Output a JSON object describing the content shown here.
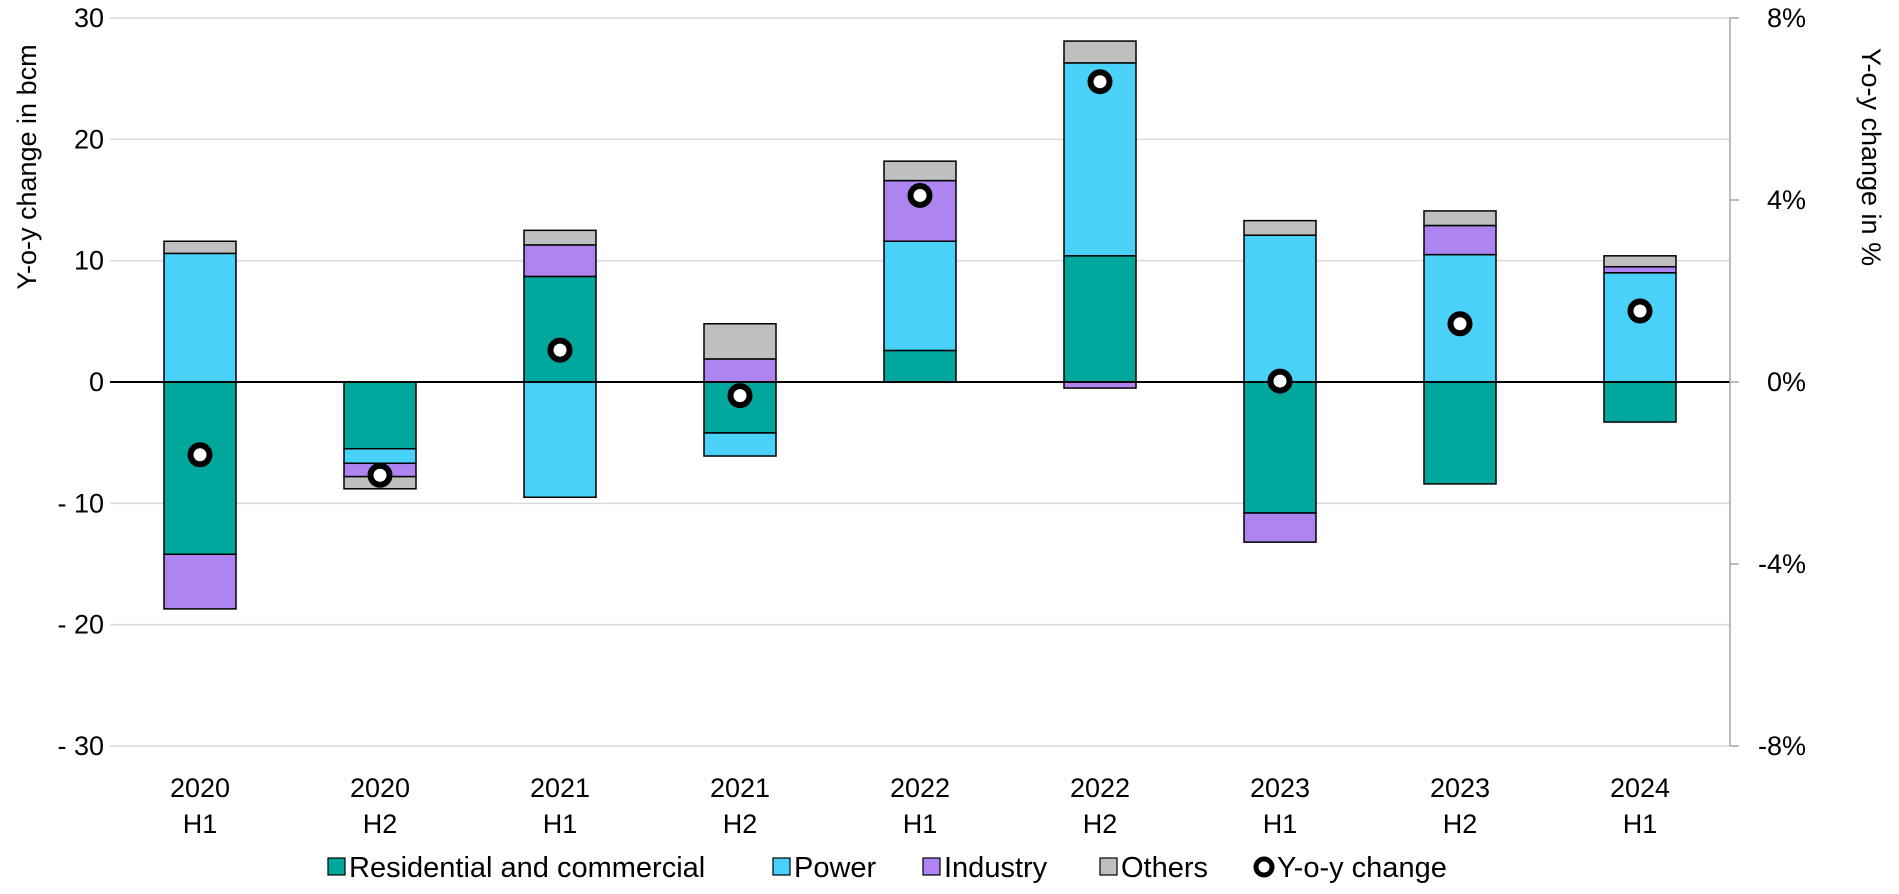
{
  "chart_data": {
    "type": "bar",
    "stacked": true,
    "categories": [
      [
        "2020",
        "H1"
      ],
      [
        "2020",
        "H2"
      ],
      [
        "2021",
        "H1"
      ],
      [
        "2021",
        "H2"
      ],
      [
        "2022",
        "H1"
      ],
      [
        "2022",
        "H2"
      ],
      [
        "2023",
        "H1"
      ],
      [
        "2023",
        "H2"
      ],
      [
        "2024",
        "H1"
      ]
    ],
    "series": [
      {
        "name": "Residential and commercial",
        "color": "#00a79d",
        "values": [
          -14.2,
          -5.5,
          8.7,
          -4.2,
          2.6,
          10.4,
          -10.8,
          -8.4,
          -3.3
        ]
      },
      {
        "name": "Power",
        "color": "#4ad1f9",
        "values": [
          10.6,
          -1.2,
          -9.5,
          -1.9,
          9.0,
          15.9,
          12.1,
          10.5,
          9.0
        ]
      },
      {
        "name": "Industry",
        "color": "#ad84f0",
        "values": [
          -4.5,
          -1.1,
          2.6,
          1.9,
          5.0,
          -0.5,
          -2.4,
          2.4,
          0.5
        ]
      },
      {
        "name": "Others",
        "color": "#bfbfbf",
        "values": [
          1.0,
          -1.0,
          1.2,
          2.9,
          1.6,
          1.8,
          1.2,
          1.2,
          0.9
        ]
      }
    ],
    "line_series": {
      "name": "Y-o-y change",
      "marker": "hollow-circle",
      "axis": "right",
      "values": [
        -1.6,
        -2.05,
        0.7,
        -0.3,
        4.1,
        6.6,
        0.02,
        1.28,
        1.56
      ]
    },
    "ylabel": "Y-o-y change in bcm",
    "ylabel_right": "Y-o-y change in %",
    "ylim": [
      -30,
      30
    ],
    "yticks": [
      30,
      20,
      10,
      0,
      -10,
      -20,
      -30
    ],
    "ytick_labels": [
      "30",
      "20",
      "10",
      "0",
      "- 10",
      "- 20",
      "- 30"
    ],
    "ylim_right": [
      -8,
      8
    ],
    "yticks_right": [
      8,
      4,
      0,
      -4,
      -8
    ],
    "ytick_labels_right": [
      "8%",
      "4%",
      "0%",
      "-4%",
      "-8%"
    ],
    "grid": true,
    "legend_position": "bottom",
    "legend": [
      "Residential and commercial",
      "Power",
      "Industry",
      "Others",
      "Y-o-y change"
    ]
  }
}
